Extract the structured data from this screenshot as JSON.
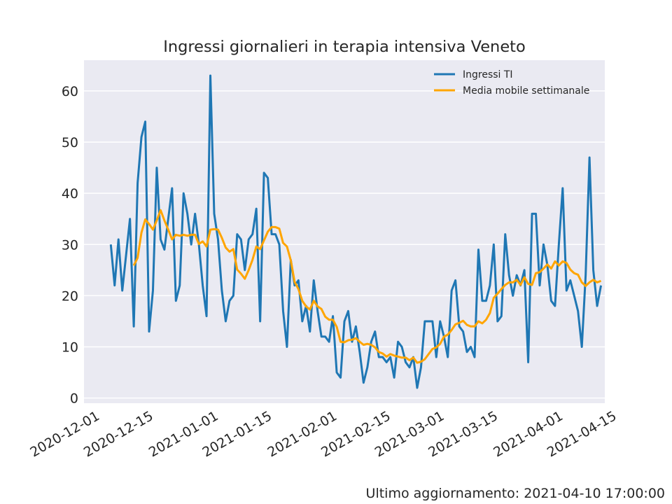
{
  "chart_data": {
    "type": "line",
    "title": "Ingressi giornalieri in terapia intensiva Veneto",
    "xlabel": "",
    "ylabel": "",
    "xlim": [
      "2020-11-30",
      "2021-04-15"
    ],
    "ylim": [
      -1,
      66
    ],
    "x_ticks": [
      "2020-12-01",
      "2020-12-15",
      "2021-01-01",
      "2021-01-15",
      "2021-02-01",
      "2021-02-15",
      "2021-03-01",
      "2021-03-15",
      "2021-04-01",
      "2021-04-15"
    ],
    "y_ticks": [
      0,
      10,
      20,
      30,
      40,
      50,
      60
    ],
    "grid": true,
    "legend_position": "top-right",
    "series": [
      {
        "name": "Ingressi TI",
        "color": "#1f77b4",
        "start_date": "2020-12-07",
        "values": [
          30,
          22,
          31,
          21,
          28,
          35,
          14,
          42,
          51,
          54,
          13,
          21,
          45,
          31,
          29,
          35,
          41,
          19,
          22,
          40,
          36,
          30,
          36,
          30,
          22,
          16,
          63,
          36,
          31,
          21,
          15,
          19,
          20,
          32,
          31,
          25,
          31,
          32,
          37,
          15,
          44,
          43,
          32,
          32,
          30,
          17,
          10,
          27,
          22,
          23,
          15,
          18,
          13,
          23,
          17,
          12,
          12,
          11,
          16,
          5,
          4,
          15,
          17,
          11,
          14,
          9,
          3,
          6,
          11,
          13,
          8,
          8,
          7,
          8,
          4,
          11,
          10,
          7,
          6,
          8,
          2,
          6,
          15,
          15,
          15,
          8,
          15,
          12,
          8,
          21,
          23,
          14,
          13,
          9,
          10,
          8,
          29,
          19,
          19,
          22,
          30,
          15,
          16,
          32,
          24,
          20,
          24,
          22,
          25,
          7,
          36,
          36,
          22,
          30,
          26,
          19,
          18,
          30,
          41,
          21,
          23,
          20,
          17,
          10,
          24,
          47,
          25,
          18,
          22
        ]
      },
      {
        "name": "Media mobile settimanale",
        "color": "#ffa500",
        "start_date": "2020-12-13",
        "values": [
          25.9,
          27.4,
          32.3,
          34.9,
          34.0,
          32.9,
          34.7,
          36.7,
          34.7,
          32.9,
          31.0,
          31.9,
          31.7,
          31.9,
          31.7,
          31.9,
          31.9,
          30.1,
          30.6,
          29.6,
          32.9,
          33.0,
          32.9,
          31.3,
          29.4,
          28.6,
          29.1,
          25.1,
          24.3,
          23.3,
          25.0,
          27.0,
          29.6,
          29.1,
          30.8,
          32.5,
          33.4,
          33.4,
          33.1,
          30.3,
          29.6,
          26.9,
          22.7,
          21.3,
          19.0,
          17.9,
          17.3,
          19.0,
          17.9,
          17.4,
          15.9,
          15.3,
          15.3,
          13.9,
          11.0,
          10.9,
          11.3,
          11.4,
          11.7,
          11.0,
          10.4,
          10.6,
          10.4,
          9.9,
          9.0,
          8.7,
          8.1,
          8.6,
          8.3,
          8.1,
          7.9,
          7.9,
          7.4,
          7.9,
          6.9,
          7.1,
          7.6,
          8.6,
          9.6,
          9.9,
          10.6,
          12.0,
          12.4,
          13.3,
          14.4,
          14.7,
          15.1,
          14.3,
          14.0,
          14.0,
          15.0,
          14.6,
          15.3,
          16.6,
          19.6,
          20.4,
          21.3,
          22.1,
          22.6,
          22.6,
          23.1,
          22.1,
          23.6,
          22.3,
          22.1,
          24.4,
          24.6,
          25.3,
          26.1,
          25.3,
          26.7,
          25.9,
          26.7,
          26.4,
          25.1,
          24.4,
          24.1,
          22.6,
          21.9,
          22.6,
          23.1,
          22.6,
          22.9
        ]
      }
    ]
  },
  "footer": {
    "updated_label": "Ultimo aggiornamento: 2021-04-10 17:00:00"
  },
  "colors": {
    "plot_background": "#eaeaf2",
    "grid": "#ffffff",
    "series_1": "#1f77b4",
    "series_2": "#ffa500"
  }
}
